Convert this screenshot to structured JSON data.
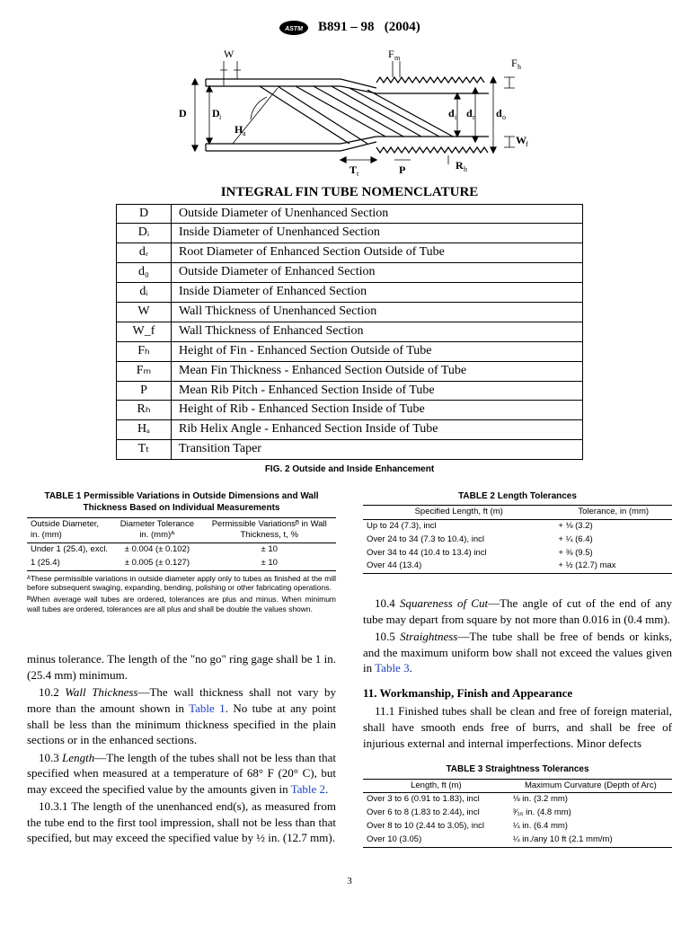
{
  "header": {
    "designation": "B891 – 98",
    "year": "(2004)"
  },
  "diagram": {
    "labels": [
      "W",
      "Fₘ",
      "Fₕ",
      "D",
      "Dᵢ",
      "Hₐ",
      "dᵢ",
      "dᵣ",
      "d₀",
      "W_f",
      "Rₕ",
      "Tₜ",
      "P"
    ],
    "stroke": "#000000"
  },
  "nomen": {
    "title": "INTEGRAL FIN TUBE NOMENCLATURE",
    "rows": [
      [
        "D",
        "Outside Diameter of Unenhanced Section"
      ],
      [
        "Dᵢ",
        "Inside Diameter of Unenhanced Section"
      ],
      [
        "dᵣ",
        "Root Diameter of Enhanced Section Outside of Tube"
      ],
      [
        "d₀",
        "Outside Diameter of Enhanced Section"
      ],
      [
        "dᵢ",
        "Inside Diameter of Enhanced Section"
      ],
      [
        "W",
        "Wall Thickness of Unenhanced Section"
      ],
      [
        "W_f",
        "Wall Thickness of Enhanced Section"
      ],
      [
        "Fₕ",
        "Height of Fin - Enhanced Section Outside of Tube"
      ],
      [
        "Fₘ",
        "Mean Fin Thickness - Enhanced Section Outside of Tube"
      ],
      [
        "P",
        "Mean Rib Pitch - Enhanced Section Inside of Tube"
      ],
      [
        "Rₕ",
        "Height of Rib - Enhanced Section Inside of Tube"
      ],
      [
        "Hₐ",
        "Rib Helix Angle - Enhanced Section Inside of Tube"
      ],
      [
        "Tₜ",
        "Transition Taper"
      ]
    ],
    "caption": "FIG. 2 Outside and Inside Enhancement"
  },
  "table1": {
    "title": "TABLE 1  Permissible Variations in Outside Dimensions and Wall Thickness Based on Individual Measurements",
    "head": [
      "Outside Diameter, in. (mm)",
      "Diameter Tolerance in. (mm)ᴬ",
      "Permissible Variationsᴮ in Wall Thickness, t, %"
    ],
    "rows": [
      [
        "Under 1 (25.4), excl.",
        "± 0.004 (± 0.102)",
        "± 10"
      ],
      [
        "1 (25.4)",
        "± 0.005 (± 0.127)",
        "± 10"
      ]
    ],
    "footnotes": [
      "ᴬThese permissible variations in outside diameter apply only to tubes as finished at the mill before subsequent swaging, expanding, bending, polishing or other fabricating operations.",
      "ᴮWhen average wall tubes are ordered, tolerances are plus and minus. When minimum wall tubes are ordered, tolerances are all plus and shall be double the values shown."
    ]
  },
  "table2": {
    "title": "TABLE 2  Length Tolerances",
    "head": [
      "Specified Length, ft (m)",
      "Tolerance, in (mm)"
    ],
    "rows": [
      [
        "Up to 24 (7.3), incl",
        "+ ⅛ (3.2)"
      ],
      [
        "Over 24 to 34 (7.3 to 10.4), incl",
        "+ ¼ (6.4)"
      ],
      [
        "Over 34 to 44 (10.4 to 13.4) incl",
        "+ ⅜ (9.5)"
      ],
      [
        "Over 44 (13.4)",
        "+ ½ (12.7) max"
      ]
    ]
  },
  "table3": {
    "title": "TABLE 3  Straightness Tolerances",
    "head": [
      "Length, ft (m)",
      "Maximum Curvature (Depth of Arc)"
    ],
    "rows": [
      [
        "Over 3 to 6 (0.91 to 1.83), incl",
        "⅛ in. (3.2 mm)"
      ],
      [
        "Over 6 to 8 (1.83 to 2.44), incl",
        "³⁄₁₆ in. (4.8 mm)"
      ],
      [
        "Over 8 to 10 (2.44 to 3.05), incl",
        "¼ in. (6.4 mm)"
      ],
      [
        "Over 10 (3.05)",
        "¼ in./any 10 ft (2.1 mm/m)"
      ]
    ]
  },
  "body": {
    "left": {
      "p1": "minus tolerance. The length of the \"no go\" ring gage shall be 1 in. (25.4 mm) minimum.",
      "p2a": "10.2 ",
      "p2i": "Wall Thickness",
      "p2b": "—The wall thickness shall not vary by more than the amount shown in ",
      "p2ref": "Table 1",
      "p2c": ". No tube at any point shall be less than the minimum thickness specified in the plain sections or in the enhanced sections.",
      "p3a": "10.3 ",
      "p3i": "Length",
      "p3b": "—The length of the tubes shall not be less than that specified when measured at a temperature of 68° F (20° C), but may exceed the specified value by the amounts given in ",
      "p3ref": "Table 2",
      "p3c": ".",
      "p4": "10.3.1 The length of the unenhanced end(s), as measured from the tube end to the first tool impression, shall not be less than that specified, but may exceed the specified value by ½ in. (12.7 mm)."
    },
    "right": {
      "p1a": "10.4 ",
      "p1i": "Squareness of Cut",
      "p1b": "—The angle of cut of the end of any tube may depart from square by not more than 0.016 in (0.4 mm).",
      "p2a": "10.5 ",
      "p2i": "Straightness",
      "p2b": "—The tube shall be free of bends or kinks, and the maximum uniform bow shall not exceed the values given in ",
      "p2ref": "Table 3",
      "p2c": ".",
      "sec11": "11.  Workmanship, Finish and Appearance",
      "p3": "11.1 Finished tubes shall be clean and free of foreign material, shall have smooth ends free of burrs, and shall be free of injurious external and internal imperfections. Minor defects"
    }
  },
  "page": "3"
}
